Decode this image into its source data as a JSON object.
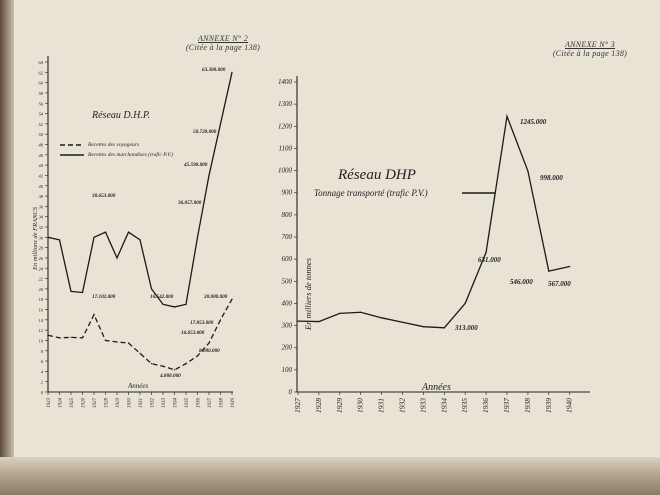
{
  "annexe_left": {
    "title": "ANNEXE N° 2",
    "subtitle": "(Citée à la page 138)"
  },
  "annexe_right": {
    "title": "ANNEXE N° 3",
    "subtitle": "(Citée à la page 138)"
  },
  "chart_data": [
    {
      "type": "line",
      "title": "Réseau D.H.P.",
      "ylabel": "En millions de FRANCS",
      "xlabel": "Années",
      "ylim": [
        0,
        64
      ],
      "yticks": [
        0,
        2,
        4,
        6,
        8,
        10,
        12,
        14,
        16,
        18,
        20,
        22,
        24,
        26,
        28,
        30,
        32,
        34,
        36,
        38,
        40,
        42,
        44,
        46,
        48,
        50,
        52,
        54,
        56,
        58,
        60,
        62,
        64
      ],
      "x": [
        "1923",
        "1924",
        "1925",
        "1926",
        "1927",
        "1928",
        "1929",
        "1930",
        "1931",
        "1932",
        "1933",
        "1934",
        "1935",
        "1936",
        "1937",
        "1938",
        "1939"
      ],
      "series": [
        {
          "name": "Recettes des voyageurs",
          "style": "dashed",
          "values": [
            11,
            10.5,
            10.6,
            10.5,
            15,
            10,
            9.7,
            9.5,
            7.5,
            5.5,
            5,
            4.3,
            5.5,
            7,
            9.5,
            14,
            18
          ]
        },
        {
          "name": "Recettes des marchandises (trafic P.V.)",
          "style": "solid",
          "values": [
            30,
            29.5,
            19.5,
            19.3,
            30,
            31,
            26,
            31,
            29.5,
            20,
            17,
            16.5,
            17,
            30,
            42,
            52,
            62
          ]
        }
      ],
      "annotations": [
        "63.300.000",
        "50.720.000",
        "45.590.000",
        "36.057.000",
        "30.653.000",
        "16.542.000",
        "17.102.000",
        "20.000.000",
        "17.853.000",
        "16.053.000",
        "8.080.000",
        "4.888.000"
      ]
    },
    {
      "type": "line",
      "title": "Réseau DHP",
      "ylabel": "En milliers de tonnes",
      "xlabel": "Années",
      "ylim": [
        0,
        1400
      ],
      "yticks": [
        0,
        100,
        200,
        300,
        400,
        500,
        600,
        700,
        800,
        900,
        1000,
        1100,
        1200,
        1300,
        1400
      ],
      "x": [
        "1927",
        "1928",
        "1929",
        "1930",
        "1931",
        "1932",
        "1933",
        "1934",
        "1935",
        "1936",
        "1937",
        "1938",
        "1939",
        "1940"
      ],
      "series": [
        {
          "name": "Tonnage transporté (trafic P.V.)",
          "style": "solid",
          "values": [
            320,
            318,
            355,
            360,
            335,
            315,
            295,
            290,
            400,
            631,
            1245,
            998,
            546,
            567
          ]
        }
      ],
      "annotations": [
        "1245.000",
        "998.000",
        "631.000",
        "313.000",
        "546.000",
        "567.000"
      ]
    }
  ]
}
